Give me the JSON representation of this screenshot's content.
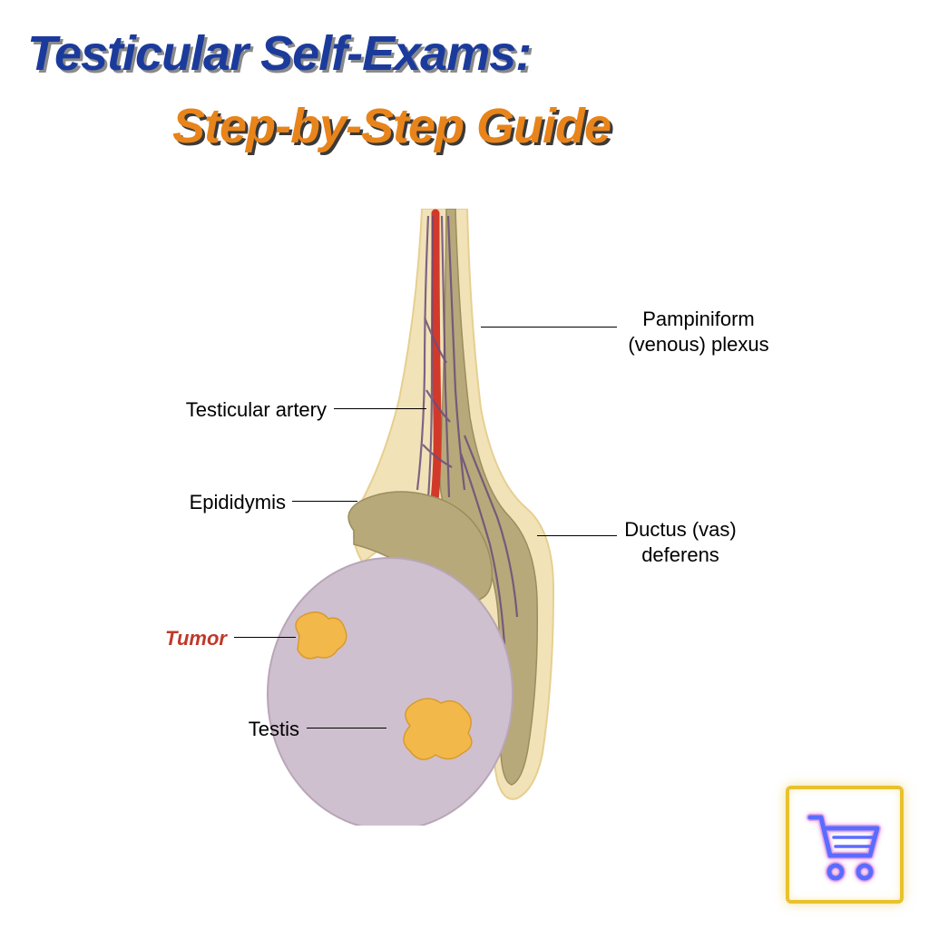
{
  "title": {
    "main": "Testicular Self-Exams:",
    "sub": "Step-by-Step Guide",
    "main_color": "#1b3b9c",
    "main_shadow": "#8a8a8a",
    "sub_color": "#e8841a",
    "sub_shadow": "#3a3a3a",
    "fontsize": 54,
    "font_style": "italic",
    "font_weight": 900
  },
  "diagram": {
    "type": "anatomical-infographic",
    "background_color": "#ffffff",
    "colors": {
      "outer_cord_fill": "#f2e2b8",
      "outer_cord_stroke": "#e6cf8f",
      "vas_deferens_fill": "#b7a97a",
      "vas_deferens_stroke": "#9c8d5d",
      "epididymis_fill": "#b7a97a",
      "epididymis_stroke": "#9c8d5d",
      "testis_fill": "#cfc0cf",
      "testis_stroke": "#b8a6b8",
      "artery": "#d13a2a",
      "vein": "#6a4d7a",
      "tumor_fill": "#f2b94a",
      "tumor_stroke": "#d99a2e",
      "leader_line": "#000000"
    },
    "label_fontsize": 22,
    "labels": {
      "pampiniform": "Pampiniform\n(venous) plexus",
      "testicular_artery": "Testicular artery",
      "epididymis": "Epididymis",
      "ductus": "Ductus (vas)\ndeferens",
      "tumor": "Tumor",
      "testis": "Testis",
      "tumor_color": "#c0392b"
    }
  },
  "cart": {
    "border_color": "#e8c22e",
    "stroke_color": "#5a6cff",
    "glow_color": "#d36ad6"
  }
}
